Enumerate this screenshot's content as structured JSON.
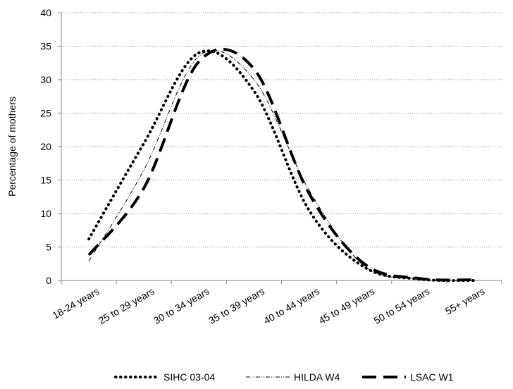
{
  "chart_data": {
    "type": "line",
    "title": "",
    "xlabel": "",
    "ylabel": "Percentage of mothers",
    "categories": [
      "18-24 years",
      "25 to 29 years",
      "30 to 34 years",
      "35 to 39 years",
      "40 to 44 years",
      "45 to 49 years",
      "50 to 54 years",
      "55+ years"
    ],
    "yticks": [
      0,
      5,
      10,
      15,
      20,
      25,
      30,
      35,
      40
    ],
    "ylim": [
      0,
      40
    ],
    "grid": "horizontal dotted",
    "legend_position": "bottom",
    "series": [
      {
        "name": "SIHC 03-04",
        "style": "dotted",
        "color": "#000000",
        "values": [
          6.2,
          20.5,
          34.0,
          28.3,
          10.5,
          2.0,
          0.2,
          0.0
        ]
      },
      {
        "name": "HILDA W4",
        "style": "dash-dot",
        "color": "#000000",
        "values": [
          2.9,
          16.5,
          33.5,
          30.0,
          13.5,
          2.2,
          0.2,
          0.1
        ]
      },
      {
        "name": "LSAC W1",
        "style": "long-dash",
        "color": "#000000",
        "values": [
          3.8,
          13.8,
          32.7,
          31.6,
          13.0,
          2.5,
          0.3,
          0.1
        ]
      }
    ]
  }
}
